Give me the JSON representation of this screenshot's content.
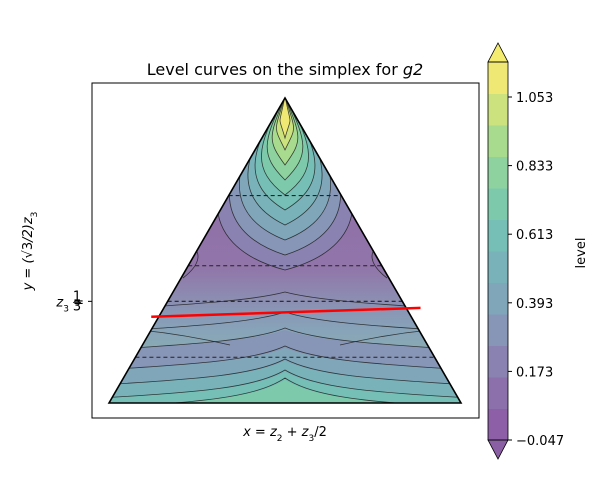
{
  "chart_data": {
    "type": "contour",
    "title": "Level curves on the simplex for ",
    "title_var": "g2",
    "xlabel_prefix": "x = z",
    "xlabel_sub1": "2",
    "xlabel_mid": " + z",
    "xlabel_sub2": "3",
    "xlabel_suffix": "/2",
    "ylabel_prefix": "y = (",
    "ylabel_sqrt": "√3",
    "ylabel_suffix": "/2)z",
    "ylabel_sub": "3",
    "y_tick": {
      "value": 0.3333,
      "label_prefix": "z",
      "label_sub": "3",
      "label_eq": " = ",
      "num": "1",
      "den": "3"
    },
    "dashed_levels_z3": [
      0.15,
      0.3333,
      0.45,
      0.68
    ],
    "red_segment": {
      "from": [
        0.12,
        0.245
      ],
      "to": [
        0.885,
        0.27
      ]
    },
    "colorbar": {
      "label": "level",
      "ticks": [
        "1.053",
        "0.833",
        "0.613",
        "0.393",
        "0.173",
        "−0.047"
      ],
      "tick_values": [
        1.053,
        0.833,
        0.613,
        0.393,
        0.173,
        -0.047
      ],
      "extend": "both",
      "min": -0.047,
      "max": 1.053,
      "colormap": "viridis",
      "alpha": 0.6
    },
    "colors": {
      "line_red": "#ff0000",
      "outline": "#000000",
      "contour_line": "#1a1a1a"
    }
  }
}
